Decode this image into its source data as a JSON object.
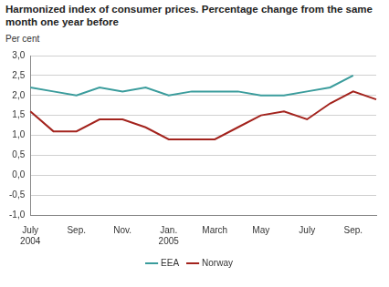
{
  "chart_data": {
    "type": "line",
    "title": "Harmonized index of consumer prices. Percentage change from the same month one year before",
    "y_label": "Per cent",
    "categories": [
      "July 2004",
      null,
      "Sep.",
      null,
      "Nov.",
      null,
      "Jan. 2005",
      null,
      "March",
      null,
      "May",
      null,
      "July",
      null,
      "Sep.",
      null
    ],
    "series": [
      {
        "name": "EEA",
        "color": "#3a9c9c",
        "values": [
          2.2,
          2.1,
          2.0,
          2.2,
          2.1,
          2.2,
          2.0,
          2.1,
          2.1,
          2.1,
          2.0,
          2.0,
          2.1,
          2.2,
          2.5,
          null
        ]
      },
      {
        "name": "Norway",
        "color": "#a3231d",
        "values": [
          1.6,
          1.1,
          1.1,
          1.4,
          1.4,
          1.2,
          0.9,
          0.9,
          0.9,
          1.2,
          1.5,
          1.6,
          1.4,
          1.8,
          2.1,
          1.9
        ]
      }
    ],
    "ylim": [
      -1.0,
      3.0
    ],
    "yticks": [
      {
        "value": -1.0,
        "label": "-1,0"
      },
      {
        "value": -0.5,
        "label": "-0,5"
      },
      {
        "value": 0,
        "label": "0,0"
      },
      {
        "value": 0.5,
        "label": "0,5"
      },
      {
        "value": 1.0,
        "label": "1,0"
      },
      {
        "value": 1.5,
        "label": "1,5"
      },
      {
        "value": 2.0,
        "label": "2,0"
      },
      {
        "value": 2.5,
        "label": "2,5"
      },
      {
        "value": 3.0,
        "label": "3,0"
      }
    ],
    "grid": true,
    "legend": "bottom"
  }
}
